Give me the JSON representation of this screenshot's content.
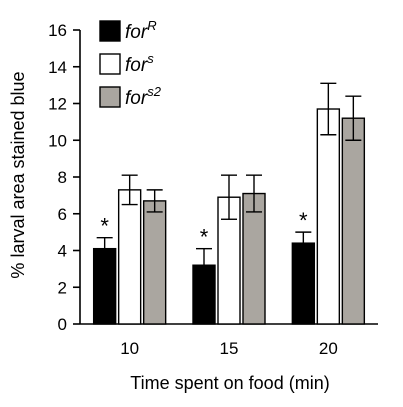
{
  "chart_data": {
    "type": "bar",
    "categories": [
      "10",
      "15",
      "20"
    ],
    "xlabel": "Time spent on food (min)",
    "ylabel": "% larval area stained blue",
    "ylim": [
      0,
      16
    ],
    "yticks": [
      "0",
      "2",
      "4",
      "6",
      "8",
      "10",
      "12",
      "14",
      "16"
    ],
    "grid": false,
    "legend_position": "top-left",
    "series": [
      {
        "name_base": "for",
        "name_sup": "R",
        "color": "#000000",
        "values": [
          4.1,
          3.2,
          4.4
        ],
        "errors": [
          0.6,
          0.9,
          0.6
        ]
      },
      {
        "name_base": "for",
        "name_sup": "s",
        "color": "#ffffff",
        "values": [
          7.3,
          6.9,
          11.7
        ],
        "errors": [
          0.8,
          1.2,
          1.4
        ]
      },
      {
        "name_base": "for",
        "name_sup": "s2",
        "color": "#aaa6a0",
        "values": [
          6.7,
          7.1,
          11.2
        ],
        "errors": [
          0.6,
          1.0,
          1.2
        ]
      }
    ],
    "annotations": [
      {
        "text": "*",
        "series": 0,
        "category": 0
      },
      {
        "text": "*",
        "series": 0,
        "category": 1
      },
      {
        "text": "*",
        "series": 0,
        "category": 2
      }
    ]
  }
}
